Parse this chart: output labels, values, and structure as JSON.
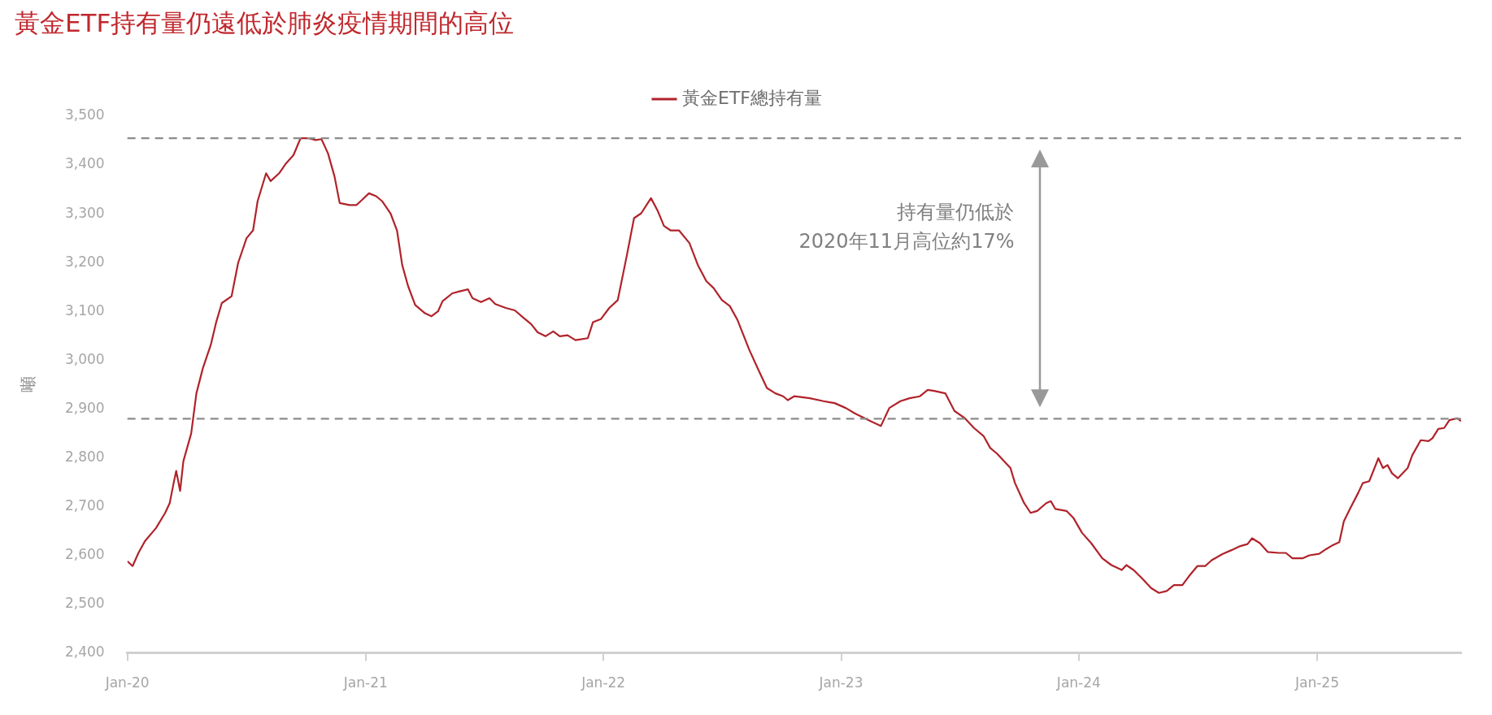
{
  "chart_data": {
    "type": "line",
    "title": "黃金ETF持有量仍遠低於肺炎疫情期間的高位",
    "ylabel": "噸",
    "legend": "top",
    "grid": false,
    "marker": "none",
    "line_style": "solid",
    "xlim": [
      "2020-01-01",
      "2025-08-10"
    ],
    "xticks": [
      {
        "value": "2020-01-01",
        "label": "Jan-20"
      },
      {
        "value": "2021-01-01",
        "label": "Jan-21"
      },
      {
        "value": "2022-01-01",
        "label": "Jan-22"
      },
      {
        "value": "2023-01-01",
        "label": "Jan-23"
      },
      {
        "value": "2024-01-01",
        "label": "Jan-24"
      },
      {
        "value": "2025-01-01",
        "label": "Jan-25"
      }
    ],
    "ylim": [
      2400,
      3500
    ],
    "yticks": [
      {
        "value": 2400,
        "label": "2,400"
      },
      {
        "value": 2500,
        "label": "2,500"
      },
      {
        "value": 2600,
        "label": "2,600"
      },
      {
        "value": 2700,
        "label": "2,700"
      },
      {
        "value": 2800,
        "label": "2,800"
      },
      {
        "value": 2900,
        "label": "2,900"
      },
      {
        "value": 3000,
        "label": "3,000"
      },
      {
        "value": 3100,
        "label": "3,100"
      },
      {
        "value": 3200,
        "label": "3,200"
      },
      {
        "value": 3300,
        "label": "3,300"
      },
      {
        "value": 3400,
        "label": "3,400"
      },
      {
        "value": 3500,
        "label": "3,500"
      }
    ],
    "ref_lines": [
      {
        "axis": "y",
        "value": 3455,
        "color": "#8c8c8c",
        "line_style": "dashed"
      },
      {
        "axis": "y",
        "value": 2880,
        "color": "#8c8c8c",
        "line_style": "dashed"
      }
    ],
    "annotations": [
      "持有量仍低於\n2020年11月高位約17%"
    ],
    "series": [
      {
        "name": "黃金ETF總持有量",
        "color": "#b0232a",
        "x": [
          "2020-01-01",
          "2020-01-09",
          "2020-01-18",
          "2020-01-28",
          "2020-02-14",
          "2020-02-28",
          "2020-03-06",
          "2020-03-12",
          "2020-03-16",
          "2020-03-22",
          "2020-03-27",
          "2020-04-08",
          "2020-04-16",
          "2020-04-26",
          "2020-05-08",
          "2020-05-16",
          "2020-05-25",
          "2020-06-09",
          "2020-06-19",
          "2020-07-02",
          "2020-07-12",
          "2020-07-19",
          "2020-08-01",
          "2020-08-08",
          "2020-08-21",
          "2020-09-01",
          "2020-09-12",
          "2020-09-23",
          "2020-10-05",
          "2020-10-16",
          "2020-10-25",
          "2020-11-04",
          "2020-11-14",
          "2020-11-22",
          "2020-12-07",
          "2020-12-18",
          "2020-12-26",
          "2021-01-06",
          "2021-01-17",
          "2021-01-26",
          "2021-02-08",
          "2021-02-18",
          "2021-02-26",
          "2021-03-07",
          "2021-03-18",
          "2021-04-02",
          "2021-04-12",
          "2021-04-22",
          "2021-04-29",
          "2021-05-14",
          "2021-05-25",
          "2021-06-07",
          "2021-06-14",
          "2021-06-27",
          "2021-07-10",
          "2021-07-19",
          "2021-08-04",
          "2021-08-18",
          "2021-09-01",
          "2021-09-12",
          "2021-09-22",
          "2021-10-04",
          "2021-10-16",
          "2021-10-26",
          "2021-11-07",
          "2021-11-19",
          "2021-12-08",
          "2021-12-16",
          "2021-12-28",
          "2022-01-10",
          "2022-01-23",
          "2022-02-06",
          "2022-02-17",
          "2022-02-28",
          "2022-03-15",
          "2022-03-25",
          "2022-04-04",
          "2022-04-14",
          "2022-04-27",
          "2022-05-13",
          "2022-05-26",
          "2022-06-08",
          "2022-06-19",
          "2022-07-02",
          "2022-07-14",
          "2022-07-26",
          "2022-08-13",
          "2022-08-27",
          "2022-09-09",
          "2022-09-22",
          "2022-10-04",
          "2022-10-11",
          "2022-10-21",
          "2022-11-14",
          "2022-12-05",
          "2022-12-22",
          "2023-01-08",
          "2023-01-22",
          "2023-02-15",
          "2023-03-03",
          "2023-03-16",
          "2023-04-02",
          "2023-04-16",
          "2023-05-02",
          "2023-05-14",
          "2023-05-24",
          "2023-06-10",
          "2023-06-24",
          "2023-07-10",
          "2023-07-24",
          "2023-08-08",
          "2023-08-18",
          "2023-08-28",
          "2023-09-11",
          "2023-09-18",
          "2023-09-25",
          "2023-10-09",
          "2023-10-19",
          "2023-10-29",
          "2023-11-12",
          "2023-11-19",
          "2023-11-26",
          "2023-12-13",
          "2023-12-24",
          "2024-01-06",
          "2024-01-20",
          "2024-02-06",
          "2024-02-20",
          "2024-03-07",
          "2024-03-14",
          "2024-03-25",
          "2024-04-07",
          "2024-04-21",
          "2024-05-03",
          "2024-05-15",
          "2024-05-26",
          "2024-06-08",
          "2024-06-18",
          "2024-07-01",
          "2024-07-13",
          "2024-07-23",
          "2024-08-09",
          "2024-08-23",
          "2024-09-05",
          "2024-09-16",
          "2024-09-23",
          "2024-10-05",
          "2024-10-17",
          "2024-11-03",
          "2024-11-14",
          "2024-11-24",
          "2024-12-10",
          "2024-12-20",
          "2025-01-04",
          "2025-01-15",
          "2025-01-25",
          "2025-02-04",
          "2025-02-11",
          "2025-02-21",
          "2025-03-05",
          "2025-03-12",
          "2025-03-22",
          "2025-04-05",
          "2025-04-12",
          "2025-04-19",
          "2025-04-26",
          "2025-05-05",
          "2025-05-20",
          "2025-05-27",
          "2025-06-09",
          "2025-06-21",
          "2025-06-27",
          "2025-07-06",
          "2025-07-15",
          "2025-07-23",
          "2025-08-04",
          "2025-08-10"
        ],
        "values": [
          2588,
          2578,
          2605,
          2629,
          2656,
          2687,
          2707,
          2748,
          2773,
          2732,
          2793,
          2850,
          2932,
          2984,
          3031,
          3076,
          3117,
          3131,
          3199,
          3250,
          3266,
          3326,
          3383,
          3367,
          3383,
          3404,
          3420,
          3455,
          3455,
          3451,
          3453,
          3424,
          3377,
          3322,
          3318,
          3318,
          3328,
          3342,
          3336,
          3326,
          3301,
          3266,
          3195,
          3152,
          3113,
          3096,
          3090,
          3100,
          3121,
          3137,
          3141,
          3145,
          3127,
          3119,
          3127,
          3115,
          3107,
          3102,
          3086,
          3074,
          3057,
          3049,
          3059,
          3049,
          3051,
          3041,
          3045,
          3078,
          3084,
          3107,
          3123,
          3215,
          3291,
          3301,
          3332,
          3307,
          3275,
          3266,
          3266,
          3240,
          3195,
          3162,
          3148,
          3123,
          3111,
          3082,
          3021,
          2980,
          2943,
          2932,
          2926,
          2918,
          2926,
          2922,
          2916,
          2912,
          2902,
          2891,
          2875,
          2865,
          2902,
          2916,
          2922,
          2926,
          2939,
          2937,
          2932,
          2896,
          2881,
          2861,
          2844,
          2820,
          2809,
          2789,
          2779,
          2748,
          2707,
          2687,
          2691,
          2707,
          2711,
          2695,
          2691,
          2676,
          2646,
          2625,
          2594,
          2580,
          2570,
          2580,
          2570,
          2553,
          2533,
          2523,
          2527,
          2539,
          2539,
          2557,
          2578,
          2578,
          2590,
          2603,
          2611,
          2619,
          2623,
          2635,
          2625,
          2607,
          2605,
          2605,
          2594,
          2594,
          2600,
          2603,
          2613,
          2621,
          2627,
          2670,
          2697,
          2728,
          2748,
          2752,
          2799,
          2779,
          2785,
          2768,
          2758,
          2779,
          2805,
          2836,
          2834,
          2840,
          2859,
          2861,
          2877,
          2881,
          2875
        ]
      }
    ]
  }
}
